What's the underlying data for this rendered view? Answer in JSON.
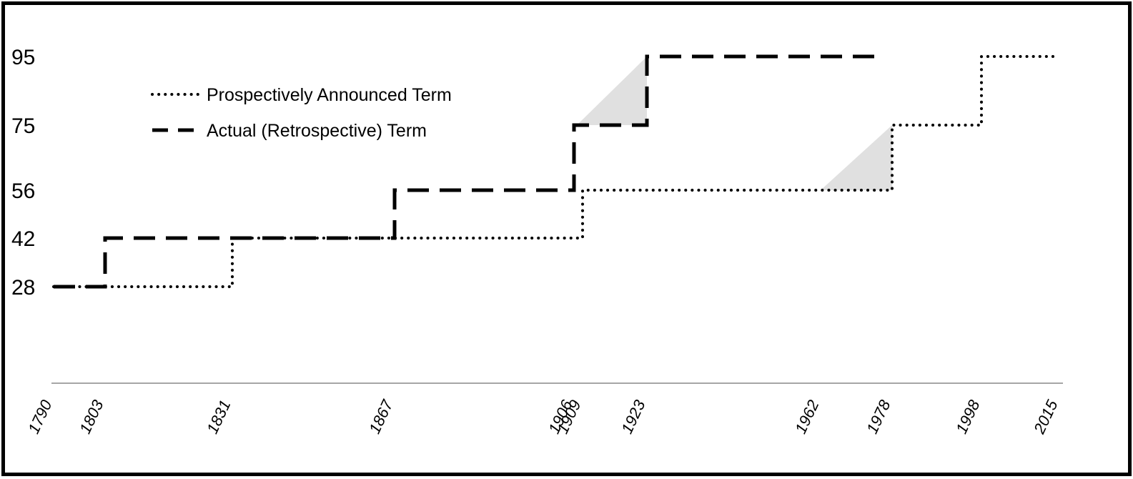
{
  "chart_data": {
    "type": "line",
    "title": "",
    "xlabel": "",
    "ylabel": "",
    "x_ticks": [
      "1790",
      "1803",
      "1831",
      "1867",
      "1906",
      "1909",
      "1923",
      "1962",
      "1978",
      "1998",
      "2015"
    ],
    "y_ticks": [
      "95",
      "75",
      "56",
      "42",
      "28"
    ],
    "xlim": [
      1790,
      2015
    ],
    "ylim": [
      0,
      95
    ],
    "legend_position": "top-left",
    "grid": false,
    "series": [
      {
        "name": "Prospectively Announced Term",
        "style": "dotted",
        "color": "#000000",
        "points": [
          [
            1790,
            28
          ],
          [
            1831,
            28
          ],
          [
            1831,
            42
          ],
          [
            1909,
            42
          ],
          [
            1909,
            56
          ],
          [
            1978,
            56
          ],
          [
            1978,
            75
          ],
          [
            1998,
            75
          ],
          [
            1998,
            95
          ],
          [
            2015,
            95
          ]
        ]
      },
      {
        "name": "Actual (Retrospective) Term",
        "style": "dashed",
        "color": "#000000",
        "points": [
          [
            1790,
            28
          ],
          [
            1803,
            28
          ],
          [
            1803,
            42
          ],
          [
            1867,
            42
          ],
          [
            1867,
            56
          ],
          [
            1906,
            56
          ],
          [
            1906,
            75
          ],
          [
            1923,
            75
          ],
          [
            1923,
            95
          ],
          [
            1976,
            95
          ]
        ]
      }
    ],
    "shaded_regions": [
      {
        "color": "#e0e0e0",
        "points": [
          [
            1907,
            75
          ],
          [
            1923,
            95
          ],
          [
            1923,
            75
          ]
        ]
      },
      {
        "color": "#e0e0e0",
        "points": [
          [
            1962,
            56
          ],
          [
            1978,
            75
          ],
          [
            1978,
            56
          ]
        ]
      }
    ]
  }
}
